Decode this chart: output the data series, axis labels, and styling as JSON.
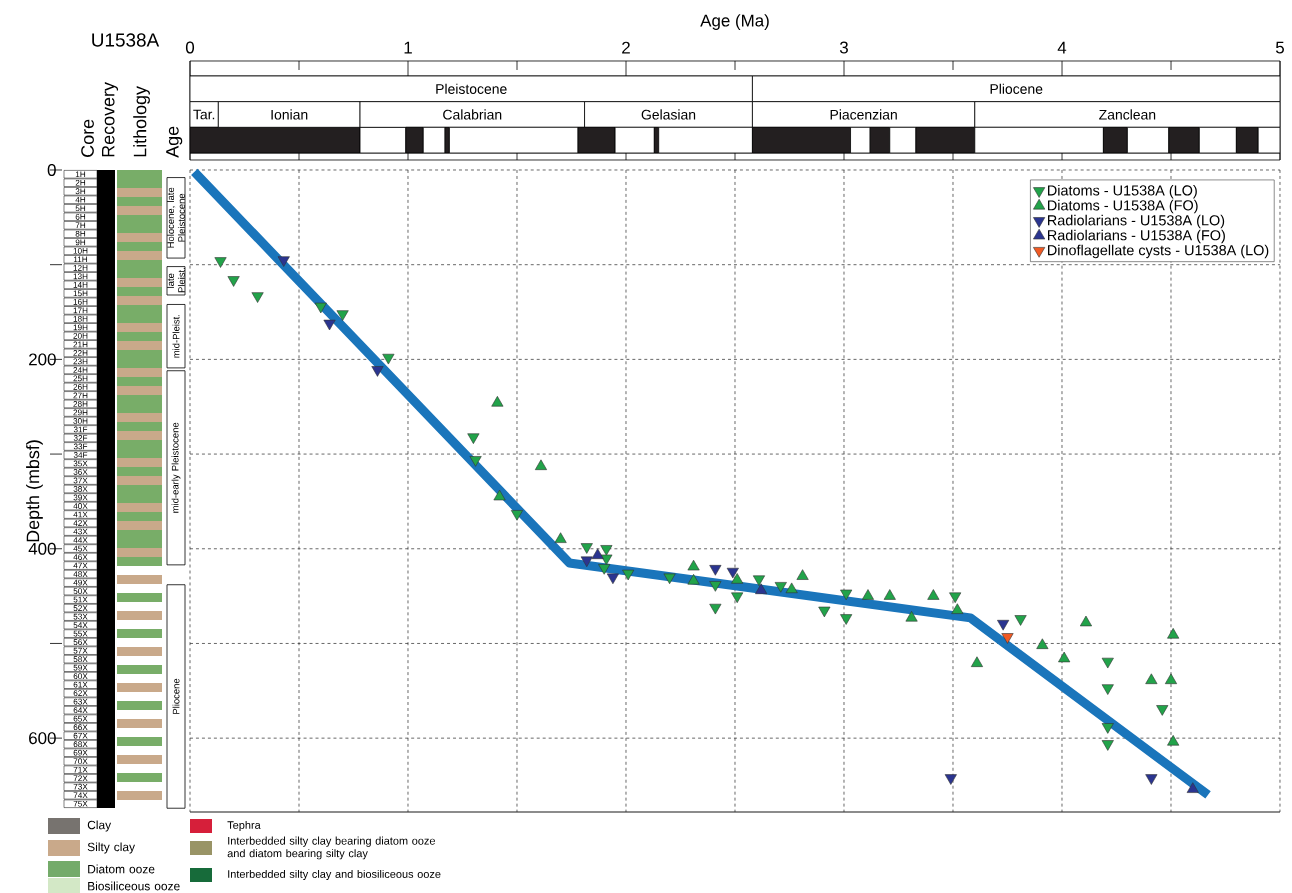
{
  "chart_data": [
    {
      "type": "bar",
      "orientation": "horizontal",
      "stacked": true,
      "categories": [
        null,
        null,
        null
      ],
      "xlim": [
        0,
        5
      ],
      "tick_labels": false,
      "series": [
        {
          "values": [
            2.58,
            0.13,
            0.78
          ],
          "colors": [
            "#ffffff",
            "#ffffff",
            "#231f20"
          ],
          "value_labels": [
            "Pleistocene",
            "Tar.",
            null
          ]
        },
        {
          "values": [
            2.42,
            0.65,
            0.21
          ],
          "colors": [
            "#ffffff",
            "#ffffff",
            "#ffffff"
          ],
          "value_labels": [
            "Pliocene",
            "Ionian",
            null
          ]
        },
        {
          "values": [
            null,
            1.03,
            0.08
          ],
          "colors": [
            null,
            "#ffffff",
            "#231f20"
          ],
          "value_labels": [
            null,
            "Calabrian",
            null
          ]
        },
        {
          "values": [
            null,
            0.77,
            0.1
          ],
          "colors": [
            null,
            "#ffffff",
            "#ffffff"
          ],
          "value_labels": [
            null,
            "Gelasian",
            null
          ]
        },
        {
          "values": [
            null,
            1.02,
            0.02
          ],
          "colors": [
            null,
            "#ffffff",
            "#231f20"
          ],
          "value_labels": [
            null,
            "Piacenzian",
            null
          ]
        },
        {
          "values": [
            null,
            1.4,
            0.59
          ],
          "colors": [
            null,
            "#ffffff",
            "#ffffff"
          ],
          "value_labels": [
            null,
            "Zanclean",
            null
          ]
        },
        {
          "values": [
            null,
            null,
            0.17
          ],
          "colors": [
            null,
            null,
            "#231f20"
          ]
        },
        {
          "values": [
            null,
            null,
            0.18
          ],
          "colors": [
            null,
            null,
            "#ffffff"
          ]
        },
        {
          "values": [
            null,
            null,
            0.02
          ],
          "colors": [
            null,
            null,
            "#231f20"
          ]
        },
        {
          "values": [
            null,
            null,
            0.43
          ],
          "colors": [
            null,
            null,
            "#ffffff"
          ]
        },
        {
          "values": [
            null,
            null,
            0.45
          ],
          "colors": [
            null,
            null,
            "#231f20"
          ]
        },
        {
          "values": [
            null,
            null,
            0.09
          ],
          "colors": [
            null,
            null,
            "#ffffff"
          ]
        },
        {
          "values": [
            null,
            null,
            0.09
          ],
          "colors": [
            null,
            null,
            "#231f20"
          ]
        },
        {
          "values": [
            null,
            null,
            0.12
          ],
          "colors": [
            null,
            null,
            "#ffffff"
          ]
        },
        {
          "values": [
            null,
            null,
            0.27
          ],
          "colors": [
            null,
            null,
            "#231f20"
          ]
        },
        {
          "values": [
            null,
            null,
            0.59
          ],
          "colors": [
            null,
            null,
            "#ffffff"
          ]
        },
        {
          "values": [
            null,
            null,
            0.11
          ],
          "colors": [
            null,
            null,
            "#231f20"
          ]
        },
        {
          "values": [
            null,
            null,
            0.19
          ],
          "colors": [
            null,
            null,
            "#ffffff"
          ]
        },
        {
          "values": [
            null,
            null,
            0.14
          ],
          "colors": [
            null,
            null,
            "#231f20"
          ]
        },
        {
          "values": [
            null,
            null,
            0.17
          ],
          "colors": [
            null,
            null,
            "#ffffff"
          ]
        },
        {
          "values": [
            null,
            null,
            0.1
          ],
          "colors": [
            null,
            null,
            "#231f20"
          ]
        },
        {
          "values": [
            null,
            null,
            0.1
          ],
          "colors": [
            null,
            null,
            "#ffffff"
          ]
        }
      ]
    },
    {
      "type": "bar",
      "categories": [
        null
      ],
      "ylim": [
        678,
        0
      ],
      "tick_labels": false,
      "series": [
        {
          "color": "#ffffff",
          "base": [
            8
          ],
          "values": [
            85
          ],
          "value_labels": [
            "Holocene, late Pleistocene"
          ]
        },
        {
          "color": "#ffffff",
          "base": [
            102
          ],
          "values": [
            30
          ],
          "value_labels": [
            "late Pleist."
          ]
        },
        {
          "color": "#ffffff",
          "base": [
            142
          ],
          "values": [
            67
          ],
          "value_labels": [
            "mid-Pleist."
          ]
        },
        {
          "color": "#ffffff",
          "base": [
            212
          ],
          "values": [
            205
          ],
          "value_labels": [
            "mid-early Pleistocene"
          ]
        },
        {
          "color": "#ffffff",
          "base": [
            438
          ],
          "values": [
            236
          ],
          "value_labels": [
            "Pliocene"
          ]
        }
      ]
    },
    {
      "type": "scatter",
      "xlabel": "Age (Ma)",
      "ylabel": "Depth (mbsf)",
      "xlim": [
        0,
        5
      ],
      "ylim": [
        678,
        0
      ],
      "xticks": [
        0,
        {
          "value": 0.5,
          "label": null
        },
        1,
        {
          "value": 1.5,
          "label": null
        },
        2,
        {
          "value": 2.5,
          "label": null
        },
        3,
        {
          "value": 3.5,
          "label": null
        },
        4,
        {
          "value": 4.5,
          "label": null
        },
        5
      ],
      "yticks": [
        0,
        {
          "value": 100,
          "label": null
        },
        200,
        {
          "value": 300,
          "label": null
        },
        400,
        {
          "value": 500,
          "label": null
        },
        600
      ],
      "grid": true,
      "legend": "top right",
      "series": [
        {
          "type": "line",
          "color": "#1a75bb",
          "x": [
            0.02,
            1.74,
            3.58,
            4.67
          ],
          "values": [
            2,
            415,
            473,
            660
          ]
        },
        {
          "name": "Diatoms - U1538A (LO)",
          "color": "#22a34a",
          "marker": "triangle-down",
          "x": [
            0.14,
            0.2,
            0.31,
            0.6,
            0.7,
            0.91,
            1.3,
            1.31,
            1.5,
            1.82,
            1.91,
            1.91,
            1.9,
            2.01,
            2.2,
            2.41,
            2.41,
            2.51,
            2.61,
            2.71,
            2.91,
            3.01,
            3.01,
            3.51,
            3.81,
            4.21,
            4.21,
            4.21,
            4.21,
            4.46
          ],
          "values": [
            96,
            116,
            133,
            144,
            152,
            198,
            282,
            306,
            363,
            398,
            400,
            410,
            420,
            426,
            430,
            438,
            462,
            450,
            432,
            439,
            465,
            447,
            473,
            450,
            474,
            519,
            547,
            588,
            606,
            569
          ]
        },
        {
          "name": "Diatoms - U1538A (FO)",
          "color": "#22a34a",
          "marker": "triangle",
          "x": [
            1.41,
            1.61,
            1.42,
            1.7,
            2.31,
            2.31,
            2.51,
            2.76,
            2.81,
            3.11,
            3.21,
            3.31,
            3.41,
            3.52,
            3.61,
            3.91,
            4.01,
            4.11,
            4.41,
            4.5,
            4.51,
            4.51
          ],
          "values": [
            246,
            313,
            345,
            390,
            419,
            434,
            433,
            443,
            429,
            450,
            450,
            473,
            450,
            465,
            521,
            502,
            516,
            478,
            539,
            539,
            491,
            604
          ]
        },
        {
          "name": "Radiolarians - U1538A (LO)",
          "color": "#2b3590",
          "marker": "triangle-down",
          "x": [
            0.43,
            0.64,
            0.86,
            1.82,
            1.94,
            2.41,
            2.49,
            3.73,
            3.49,
            4.41
          ],
          "values": [
            95,
            162,
            211,
            412,
            430,
            421,
            424,
            479,
            642,
            642
          ]
        },
        {
          "name": "Radiolarians - U1538A (FO)",
          "color": "#2b3590",
          "marker": "triangle",
          "x": [
            1.87,
            2.62,
            4.6
          ],
          "values": [
            407,
            444,
            654
          ]
        },
        {
          "name": "Dinoflagellate cysts - U1538A (LO)",
          "color": "#f15a24",
          "marker": "triangle-down",
          "x": [
            3.75
          ],
          "values": [
            493
          ]
        }
      ],
      "annotations": [
        "U1538A",
        "Core Recovery",
        "Lithology",
        "Age",
        "1H",
        "2H",
        "3H",
        "4H",
        "5H",
        "6H",
        "7H",
        "8H",
        "9H",
        "10H",
        "11H",
        "12H",
        "13H",
        "14H",
        "15H",
        "16H",
        "17H",
        "18H",
        "19H",
        "20H",
        "21H",
        "22H",
        "23H",
        "24H",
        "25H",
        "26H",
        "27H",
        "28H",
        "29H",
        "30H",
        "31F",
        "32F",
        "33F",
        "34F",
        "35X",
        "36X",
        "37X",
        "38X",
        "39X",
        "40X",
        "41X",
        "42X",
        "43X",
        "44X",
        "45X",
        "46X",
        "47X",
        "48X",
        "49X",
        "50X",
        "51X",
        "52X",
        "53X",
        "54X",
        "55X",
        "56X",
        "57X",
        "58X",
        "59X",
        "60X",
        "61X",
        "62X",
        "63X",
        "64X",
        "65X",
        "66X",
        "67X",
        "68X",
        "69X",
        "70X",
        "71X",
        "72X",
        "73X",
        "74X",
        "75X",
        "Clay",
        "Silty clay",
        "Diatom ooze",
        "Biosiliceous ooze",
        "Tephra",
        "Interbedded silty clay bearing diatom ooze and diatom bearing silty clay",
        "Interbedded silty clay and biosiliceous ooze"
      ]
    }
  ]
}
